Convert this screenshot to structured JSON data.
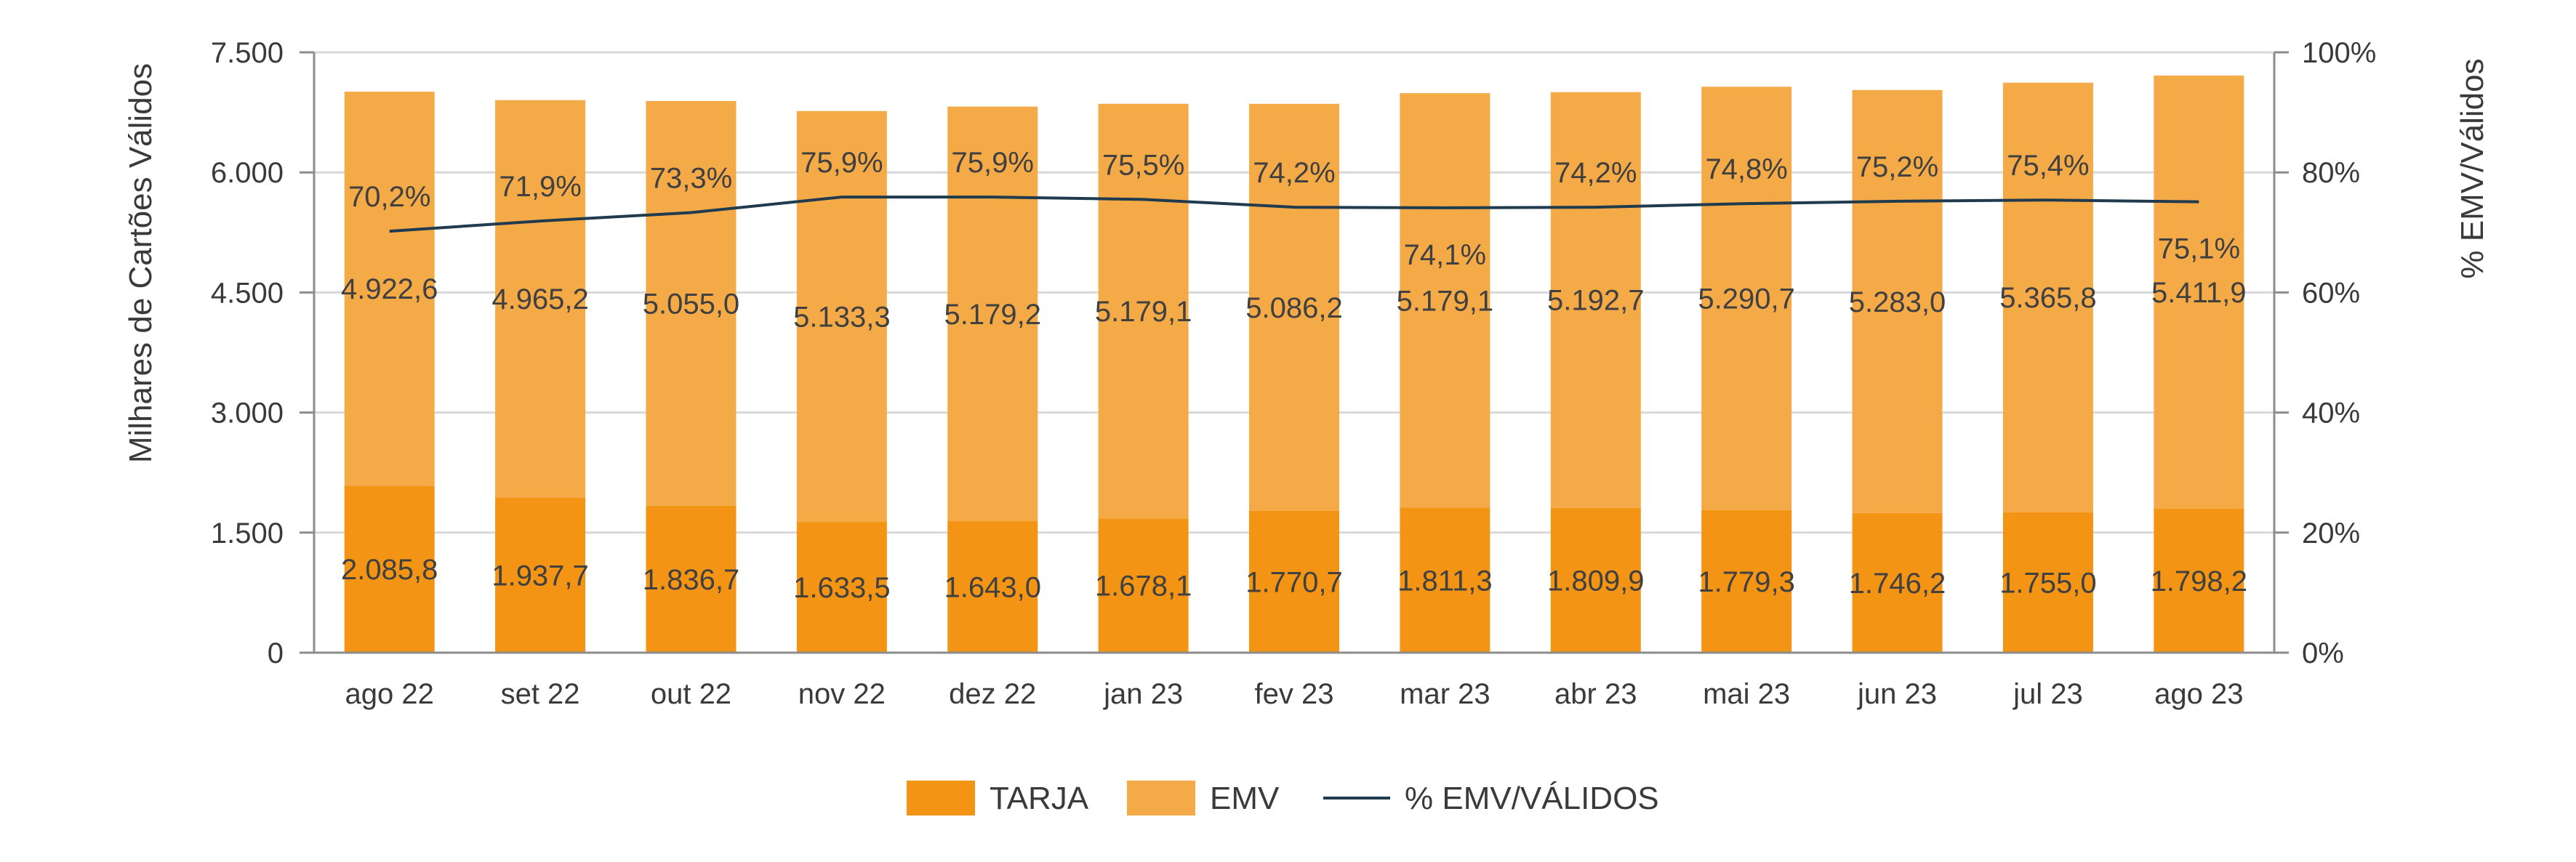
{
  "chart_data": {
    "type": "bar",
    "stacked": true,
    "categories": [
      "ago 22",
      "set 22",
      "out 22",
      "nov 22",
      "dez 22",
      "jan 23",
      "fev 23",
      "mar 23",
      "abr 23",
      "mai 23",
      "jun 23",
      "jul 23",
      "ago 23"
    ],
    "series": [
      {
        "name": "TARJA",
        "color": "#F39414",
        "values": [
          2085.8,
          1937.7,
          1836.7,
          1633.5,
          1643.0,
          1678.1,
          1770.7,
          1811.3,
          1809.9,
          1779.3,
          1746.2,
          1755.0,
          1798.2
        ],
        "labels": [
          "2.085,8",
          "1.937,7",
          "1.836,7",
          "1.633,5",
          "1.643,0",
          "1.678,1",
          "1.770,7",
          "1.811,3",
          "1.809,9",
          "1.779,3",
          "1.746,2",
          "1.755,0",
          "1.798,2"
        ]
      },
      {
        "name": "EMV",
        "color": "#F5AA48",
        "values": [
          4922.6,
          4965.2,
          5055.0,
          5133.3,
          5179.2,
          5179.1,
          5086.2,
          5179.1,
          5192.7,
          5290.7,
          5283.0,
          5365.8,
          5411.9
        ],
        "labels": [
          "4.922,6",
          "4.965,2",
          "5.055,0",
          "5.133,3",
          "5.179,2",
          "5.179,1",
          "5.086,2",
          "5.179,1",
          "5.192,7",
          "5.290,7",
          "5.283,0",
          "5.365,8",
          "5.411,9"
        ]
      }
    ],
    "line_series": {
      "name": "% EMV/VÁLIDOS",
      "color": "#1F3B4D",
      "axis": "right",
      "values": [
        70.2,
        71.9,
        73.3,
        75.9,
        75.9,
        75.5,
        74.2,
        74.1,
        74.2,
        74.8,
        75.2,
        75.4,
        75.1
      ],
      "labels": [
        "70,2%",
        "71,9%",
        "73,3%",
        "75,9%",
        "75,9%",
        "75,5%",
        "74,2%",
        "74,1%",
        "74,2%",
        "74,8%",
        "75,2%",
        "75,4%",
        "75,1%"
      ]
    },
    "ylabel": "Milhares de Cartões Válidos",
    "y2label": "% EMV/Válidos",
    "ylim": [
      0,
      7500
    ],
    "y2lim": [
      0,
      100
    ],
    "yticks": [
      "0",
      "1.500",
      "3.000",
      "4.500",
      "6.000",
      "7.500"
    ],
    "y2ticks": [
      "0%",
      "20%",
      "40%",
      "60%",
      "80%",
      "100%"
    ],
    "grid": true,
    "legend_position": "bottom",
    "legend": [
      "TARJA",
      "EMV",
      "% EMV/VÁLIDOS"
    ]
  }
}
